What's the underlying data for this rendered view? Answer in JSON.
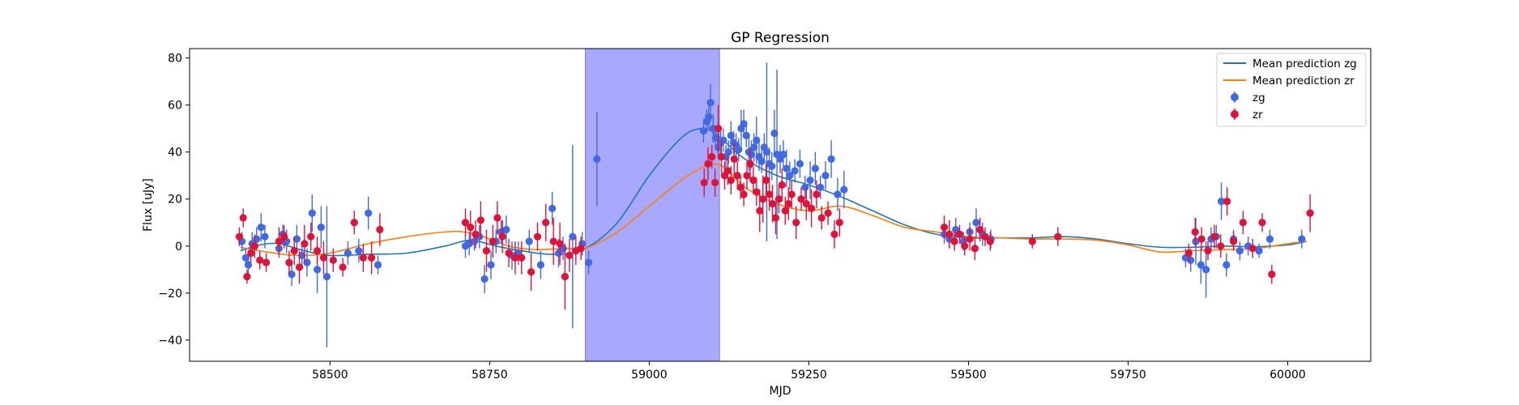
{
  "chart_data": {
    "type": "scatter",
    "title": "GP Regression",
    "xlabel": "MJD",
    "ylabel": "Flux [uJy]",
    "xlim": [
      58280,
      60130
    ],
    "ylim": [
      -49,
      84
    ],
    "xticks": [
      58500,
      58750,
      59000,
      59250,
      59500,
      59750,
      60000
    ],
    "yticks": [
      -40,
      -20,
      0,
      20,
      40,
      60,
      80
    ],
    "grid": false,
    "legend_position": "top-right",
    "shaded_span": {
      "x_start": 58900,
      "x_end": 59110,
      "color": "#a8a8ff"
    },
    "colors": {
      "zg": "#4169e1",
      "zr": "#dc143c",
      "mean_zg": "#1f77b4",
      "mean_zr": "#ff7f0e"
    },
    "series": [
      {
        "name": "Mean prediction zg",
        "kind": "line",
        "x": [
          58360,
          58390,
          58420,
          58460,
          58500,
          58560,
          58620,
          58680,
          58720,
          58760,
          58800,
          58850,
          58900,
          58950,
          59000,
          59050,
          59080,
          59100,
          59120,
          59150,
          59200,
          59250,
          59300,
          59350,
          59400,
          59450,
          59500,
          59550,
          59600,
          59650,
          59700,
          59750,
          59800,
          59850,
          59900,
          59950,
          60000,
          60030
        ],
        "y": [
          -2,
          0.5,
          1,
          -2,
          -4,
          -3.5,
          -3,
          0,
          2.5,
          0,
          -2,
          -3.5,
          -1,
          10,
          30,
          46,
          50,
          48.5,
          44,
          37,
          30,
          26,
          21,
          15,
          9,
          5,
          3.5,
          3.5,
          3.5,
          4,
          3,
          1,
          -0.5,
          -0.5,
          0,
          -0.3,
          0.5,
          2
        ]
      },
      {
        "name": "Mean prediction zr",
        "kind": "line",
        "x": [
          58360,
          58400,
          58450,
          58500,
          58560,
          58620,
          58680,
          58710,
          58740,
          58780,
          58820,
          58870,
          58900,
          58950,
          59000,
          59050,
          59080,
          59100,
          59120,
          59150,
          59200,
          59250,
          59300,
          59350,
          59400,
          59450,
          59500,
          59550,
          59600,
          59650,
          59700,
          59750,
          59800,
          59850,
          59900,
          59950,
          60000,
          60030
        ],
        "y": [
          -0.5,
          -2.5,
          -4,
          -3,
          1,
          4,
          6,
          6,
          4,
          0,
          -1.5,
          -1,
          -1,
          6,
          17,
          28,
          33,
          35,
          33,
          25,
          18,
          15,
          17,
          13,
          8,
          6,
          4,
          3.5,
          3,
          3,
          2.5,
          0.5,
          -2.5,
          -2,
          -1.5,
          -1,
          1,
          2
        ]
      },
      {
        "name": "zg",
        "kind": "errorbar",
        "x": [
          58362,
          58368,
          58372,
          58378,
          58385,
          58392,
          58398,
          58420,
          58426,
          58432,
          58440,
          58448,
          58456,
          58464,
          58472,
          58480,
          58486,
          58495,
          58528,
          58545,
          58560,
          58575,
          58712,
          58718,
          58726,
          58734,
          58742,
          58752,
          58760,
          58768,
          58776,
          58785,
          58795,
          58812,
          58830,
          58848,
          58858,
          58865,
          58880,
          58895,
          58905,
          58918,
          59085,
          59090,
          59093,
          59096,
          59100,
          59104,
          59108,
          59112,
          59116,
          59120,
          59124,
          59128,
          59132,
          59136,
          59140,
          59144,
          59148,
          59152,
          59156,
          59160,
          59164,
          59168,
          59172,
          59176,
          59180,
          59184,
          59188,
          59192,
          59196,
          59200,
          59205,
          59210,
          59215,
          59220,
          59228,
          59236,
          59244,
          59252,
          59260,
          59268,
          59276,
          59285,
          59295,
          59305,
          59462,
          59470,
          59480,
          59492,
          59502,
          59512,
          59522,
          59535,
          59840,
          59848,
          59856,
          59864,
          59872,
          59880,
          59888,
          59896,
          59904,
          59915,
          59925,
          59938,
          59955,
          59972,
          60022
        ],
        "y": [
          2,
          -5,
          -8,
          1,
          3,
          8,
          4,
          -1,
          5,
          2,
          -12,
          3,
          -4,
          -7,
          14,
          -10,
          8,
          -13,
          -3,
          -2,
          14,
          -8,
          0,
          1,
          2,
          4,
          -14,
          -8,
          2,
          6,
          7,
          -4,
          -3,
          2,
          -8,
          16,
          -3,
          -1,
          4,
          1,
          -7,
          37,
          49,
          53,
          55,
          61,
          50,
          46,
          42,
          44,
          45,
          38,
          40,
          47,
          44,
          43,
          41,
          50,
          52,
          47,
          40,
          39,
          42,
          45,
          38,
          36,
          42,
          40,
          35,
          34,
          48,
          39,
          37,
          39,
          33,
          30,
          32,
          35,
          25,
          28,
          33,
          25,
          30,
          37,
          22,
          24,
          5,
          3,
          7,
          2,
          6,
          10,
          5,
          3,
          -5,
          -6,
          2,
          -8,
          -10,
          3,
          4,
          19,
          -8,
          3,
          -2,
          0,
          -2,
          3,
          3
        ],
        "err": [
          4,
          4,
          4,
          5,
          5,
          6,
          5,
          4,
          4,
          5,
          5,
          6,
          5,
          6,
          8,
          10,
          9,
          30,
          5,
          5,
          7,
          4,
          5,
          5,
          4,
          5,
          6,
          6,
          5,
          5,
          6,
          6,
          5,
          5,
          6,
          7,
          6,
          5,
          39,
          5,
          5,
          20,
          5,
          5,
          5,
          8,
          6,
          5,
          5,
          5,
          5,
          5,
          5,
          6,
          5,
          5,
          5,
          8,
          6,
          5,
          8,
          6,
          6,
          10,
          6,
          5,
          6,
          38,
          7,
          6,
          10,
          36,
          6,
          6,
          8,
          6,
          5,
          6,
          5,
          8,
          7,
          5,
          6,
          8,
          7,
          8,
          4,
          4,
          5,
          4,
          4,
          6,
          5,
          4,
          4,
          5,
          10,
          8,
          12,
          5,
          5,
          8,
          5,
          4,
          4,
          4,
          3,
          4,
          4
        ]
      },
      {
        "name": "zr",
        "kind": "errorbar",
        "x": [
          58358,
          58364,
          58370,
          58376,
          58382,
          58390,
          58400,
          58420,
          58428,
          58436,
          58444,
          58452,
          58460,
          58470,
          58480,
          58490,
          58505,
          58520,
          58538,
          58552,
          58565,
          58578,
          58712,
          58720,
          58728,
          58736,
          58745,
          58755,
          58762,
          58770,
          58780,
          58790,
          58800,
          58815,
          58825,
          58838,
          58850,
          58860,
          58868,
          58875,
          58885,
          58893,
          59086,
          59092,
          59098,
          59103,
          59108,
          59113,
          59118,
          59123,
          59128,
          59133,
          59138,
          59143,
          59148,
          59153,
          59158,
          59163,
          59168,
          59173,
          59178,
          59183,
          59188,
          59193,
          59198,
          59203,
          59208,
          59213,
          59218,
          59223,
          59230,
          59238,
          59246,
          59254,
          59262,
          59270,
          59280,
          59290,
          59298,
          59462,
          59470,
          59478,
          59486,
          59494,
          59502,
          59510,
          59518,
          59526,
          59534,
          59600,
          59640,
          59845,
          59855,
          59865,
          59875,
          59885,
          59895,
          59905,
          59915,
          59930,
          59945,
          59960,
          59975,
          60035
        ],
        "y": [
          4,
          12,
          -13,
          -3,
          0,
          -6,
          -7,
          2,
          4,
          -7,
          -2,
          -9,
          1,
          4,
          -2,
          -5,
          -6,
          -9,
          10,
          -5,
          -5,
          7,
          10,
          8,
          5,
          11,
          -2,
          2,
          12,
          4,
          -3,
          -5,
          -5,
          -11,
          4,
          10,
          2,
          1,
          -13,
          -4,
          -2,
          -1,
          27,
          35,
          38,
          27,
          50,
          38,
          30,
          32,
          28,
          37,
          30,
          25,
          22,
          30,
          35,
          28,
          23,
          15,
          20,
          28,
          22,
          18,
          12,
          20,
          26,
          15,
          18,
          22,
          10,
          20,
          18,
          16,
          22,
          12,
          14,
          5,
          10,
          8,
          5,
          2,
          5,
          0,
          3,
          -1,
          7,
          4,
          2,
          2,
          4,
          -3,
          6,
          3,
          -2,
          4,
          0,
          19,
          2,
          10,
          -1,
          10,
          -12,
          14
        ],
        "err": [
          4,
          4,
          3,
          4,
          5,
          4,
          4,
          6,
          5,
          5,
          6,
          7,
          8,
          6,
          6,
          7,
          5,
          4,
          5,
          6,
          7,
          7,
          6,
          7,
          6,
          8,
          9,
          7,
          7,
          7,
          6,
          7,
          7,
          8,
          6,
          8,
          10,
          9,
          14,
          7,
          6,
          5,
          6,
          7,
          5,
          6,
          10,
          7,
          6,
          6,
          6,
          7,
          6,
          5,
          5,
          6,
          7,
          6,
          6,
          9,
          10,
          7,
          7,
          8,
          7,
          6,
          7,
          6,
          7,
          6,
          7,
          5,
          7,
          8,
          6,
          5,
          5,
          6,
          6,
          5,
          6,
          4,
          4,
          4,
          5,
          5,
          5,
          4,
          4,
          3,
          4,
          4,
          6,
          5,
          4,
          5,
          5,
          6,
          4,
          5,
          4,
          4,
          4,
          8
        ]
      }
    ]
  }
}
